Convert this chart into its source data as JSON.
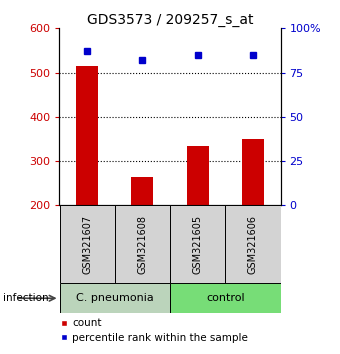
{
  "title": "GDS3573 / 209257_s_at",
  "samples": [
    "GSM321607",
    "GSM321608",
    "GSM321605",
    "GSM321606"
  ],
  "counts": [
    515,
    265,
    335,
    350
  ],
  "percentiles": [
    87,
    82,
    85,
    85
  ],
  "ylim_left": [
    200,
    600
  ],
  "ylim_right": [
    0,
    100
  ],
  "yticks_left": [
    200,
    300,
    400,
    500,
    600
  ],
  "yticks_right": [
    0,
    25,
    50,
    75,
    100
  ],
  "ytick_labels_right": [
    "0",
    "25",
    "50",
    "75",
    "100%"
  ],
  "bar_color": "#cc0000",
  "dot_color": "#0000cc",
  "group1_label": "C. pneumonia",
  "group2_label": "control",
  "group1_color": "#bbd4bb",
  "group2_color": "#77dd77",
  "group_label": "infection",
  "legend_count": "count",
  "legend_pct": "percentile rank within the sample",
  "grid_lines": [
    300,
    400,
    500
  ],
  "title_fontsize": 10,
  "tick_fontsize": 8,
  "left_tick_color": "#cc0000",
  "right_tick_color": "#0000cc",
  "sample_label_fontsize": 7,
  "group_label_fontsize": 8,
  "legend_fontsize": 7.5,
  "bar_width": 0.4
}
